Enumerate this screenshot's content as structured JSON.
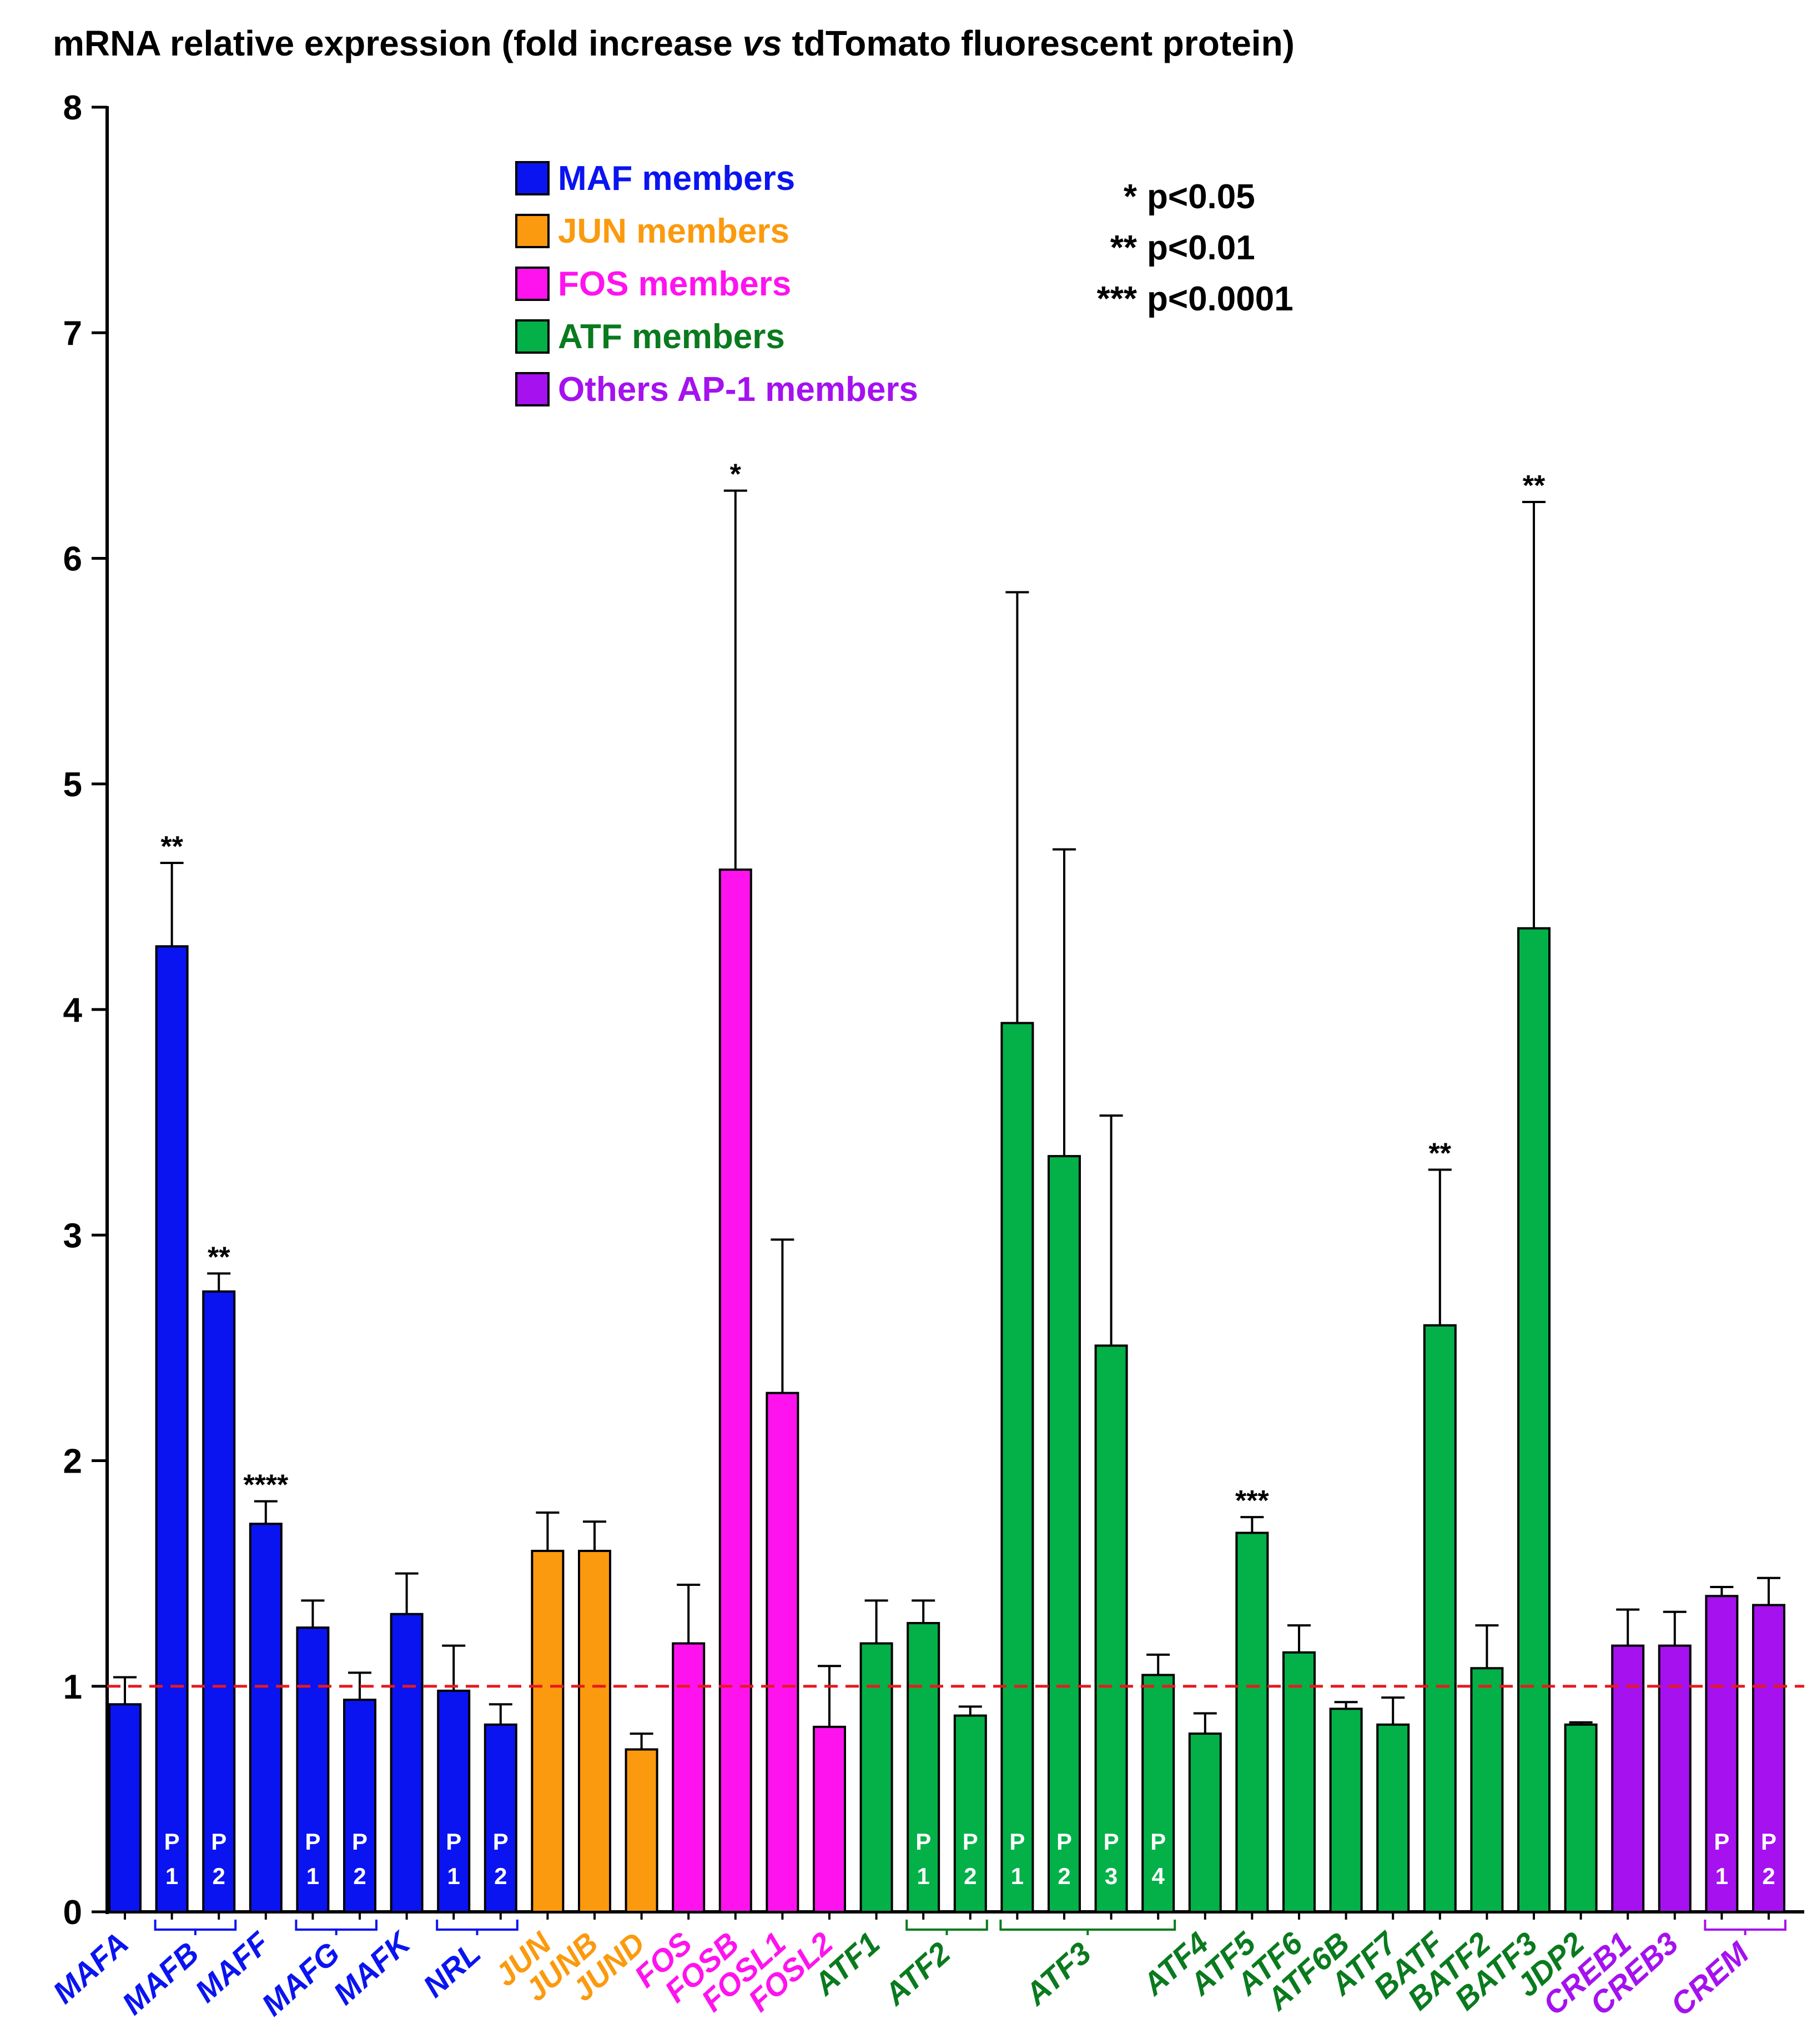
{
  "chart_data": {
    "type": "bar",
    "title": "mRNA relative expression (fold increase vs tdTomato fluorescent protein)",
    "title_parts": {
      "before": "mRNA relative expression (fold increase ",
      "italic": "vs",
      "after": " tdTomato fluorescent protein)"
    },
    "xlabel": "",
    "ylabel": "",
    "ylim": [
      0,
      8
    ],
    "yticks": [
      "0",
      "1",
      "2",
      "3",
      "4",
      "5",
      "6",
      "7",
      "8"
    ],
    "reference_line": {
      "value": 1,
      "color": "#e8191e",
      "style": "dashed"
    },
    "colors": {
      "MAF": "#0a14f0",
      "JUN": "#fb9a0e",
      "FOS": "#fe13ee",
      "ATF": "#04b048",
      "Others": "#a511ef",
      "ATF_text": "#0a7a1e"
    },
    "legend": [
      {
        "label": "MAF members",
        "group": "MAF"
      },
      {
        "label": "JUN members",
        "group": "JUN"
      },
      {
        "label": "FOS members",
        "group": "FOS"
      },
      {
        "label": "ATF members",
        "group": "ATF"
      },
      {
        "label": "Others AP-1 members",
        "group": "Others"
      }
    ],
    "significance_key": [
      "* p<0.05",
      "** p<0.01",
      "*** p<0.0001"
    ],
    "bars": [
      {
        "gene": "MAFA",
        "probe": "",
        "value": 0.92,
        "err": 0.12,
        "sig": "",
        "group": "MAF"
      },
      {
        "gene": "MAFB",
        "probe": "P\n1",
        "value": 4.28,
        "err": 0.37,
        "sig": "**",
        "group": "MAF"
      },
      {
        "gene": "MAFB",
        "probe": "P\n2",
        "value": 2.75,
        "err": 0.08,
        "sig": "**",
        "group": "MAF"
      },
      {
        "gene": "MAFF",
        "probe": "",
        "value": 1.72,
        "err": 0.1,
        "sig": "****",
        "group": "MAF"
      },
      {
        "gene": "MAFG",
        "probe": "P\n1",
        "value": 1.26,
        "err": 0.12,
        "sig": "",
        "group": "MAF"
      },
      {
        "gene": "MAFG",
        "probe": "P\n2",
        "value": 0.94,
        "err": 0.12,
        "sig": "",
        "group": "MAF"
      },
      {
        "gene": "MAFK",
        "probe": "",
        "value": 1.32,
        "err": 0.18,
        "sig": "",
        "group": "MAF"
      },
      {
        "gene": "NRL",
        "probe": "P\n1",
        "value": 0.98,
        "err": 0.2,
        "sig": "",
        "group": "MAF"
      },
      {
        "gene": "NRL",
        "probe": "P\n2",
        "value": 0.83,
        "err": 0.09,
        "sig": "",
        "group": "MAF"
      },
      {
        "gene": "JUN",
        "probe": "",
        "value": 1.6,
        "err": 0.17,
        "sig": "",
        "group": "JUN"
      },
      {
        "gene": "JUNB",
        "probe": "",
        "value": 1.6,
        "err": 0.13,
        "sig": "",
        "group": "JUN"
      },
      {
        "gene": "JUND",
        "probe": "",
        "value": 0.72,
        "err": 0.07,
        "sig": "",
        "group": "JUN"
      },
      {
        "gene": "FOS",
        "probe": "",
        "value": 1.19,
        "err": 0.26,
        "sig": "",
        "group": "FOS"
      },
      {
        "gene": "FOSB",
        "probe": "",
        "value": 4.62,
        "err": 1.68,
        "sig": "*",
        "group": "FOS"
      },
      {
        "gene": "FOSL1",
        "probe": "",
        "value": 2.3,
        "err": 0.68,
        "sig": "",
        "group": "FOS"
      },
      {
        "gene": "FOSL2",
        "probe": "",
        "value": 0.82,
        "err": 0.27,
        "sig": "",
        "group": "FOS"
      },
      {
        "gene": "ATF1",
        "probe": "",
        "value": 1.19,
        "err": 0.19,
        "sig": "",
        "group": "ATF"
      },
      {
        "gene": "ATF2",
        "probe": "P\n1",
        "value": 1.28,
        "err": 0.1,
        "sig": "",
        "group": "ATF"
      },
      {
        "gene": "ATF2",
        "probe": "P\n2",
        "value": 0.87,
        "err": 0.04,
        "sig": "",
        "group": "ATF"
      },
      {
        "gene": "ATF3",
        "probe": "P\n1",
        "value": 3.94,
        "err": 1.91,
        "sig": "",
        "group": "ATF"
      },
      {
        "gene": "ATF3",
        "probe": "P\n2",
        "value": 3.35,
        "err": 1.36,
        "sig": "",
        "group": "ATF"
      },
      {
        "gene": "ATF3",
        "probe": "P\n3",
        "value": 2.51,
        "err": 1.02,
        "sig": "",
        "group": "ATF"
      },
      {
        "gene": "ATF3",
        "probe": "P\n4",
        "value": 1.05,
        "err": 0.09,
        "sig": "",
        "group": "ATF"
      },
      {
        "gene": "ATF4",
        "probe": "",
        "value": 0.79,
        "err": 0.09,
        "sig": "",
        "group": "ATF"
      },
      {
        "gene": "ATF5",
        "probe": "",
        "value": 1.68,
        "err": 0.07,
        "sig": "***",
        "group": "ATF"
      },
      {
        "gene": "ATF6",
        "probe": "",
        "value": 1.15,
        "err": 0.12,
        "sig": "",
        "group": "ATF"
      },
      {
        "gene": "ATF6B",
        "probe": "",
        "value": 0.9,
        "err": 0.03,
        "sig": "",
        "group": "ATF"
      },
      {
        "gene": "ATF7",
        "probe": "",
        "value": 0.83,
        "err": 0.12,
        "sig": "",
        "group": "ATF"
      },
      {
        "gene": "BATF",
        "probe": "",
        "value": 2.6,
        "err": 0.69,
        "sig": "**",
        "group": "ATF"
      },
      {
        "gene": "BATF2",
        "probe": "",
        "value": 1.08,
        "err": 0.19,
        "sig": "",
        "group": "ATF"
      },
      {
        "gene": "BATF3",
        "probe": "",
        "value": 4.36,
        "err": 1.89,
        "sig": "**",
        "group": "ATF"
      },
      {
        "gene": "JDP2",
        "probe": "",
        "value": 0.83,
        "err": 0.01,
        "sig": "",
        "group": "ATF"
      },
      {
        "gene": "CREB1",
        "probe": "",
        "value": 1.18,
        "err": 0.16,
        "sig": "",
        "group": "Others"
      },
      {
        "gene": "CREB3",
        "probe": "",
        "value": 1.18,
        "err": 0.15,
        "sig": "",
        "group": "Others"
      },
      {
        "gene": "CREM",
        "probe": "P\n1",
        "value": 1.4,
        "err": 0.04,
        "sig": "",
        "group": "Others"
      },
      {
        "gene": "CREM",
        "probe": "P\n2",
        "value": 1.36,
        "err": 0.12,
        "sig": "",
        "group": "Others"
      }
    ],
    "xlabels": [
      {
        "label": "MAFA",
        "from": 0,
        "to": 0,
        "group": "MAF"
      },
      {
        "label": "MAFB",
        "from": 1,
        "to": 2,
        "group": "MAF"
      },
      {
        "label": "MAFF",
        "from": 3,
        "to": 3,
        "group": "MAF"
      },
      {
        "label": "MAFG",
        "from": 4,
        "to": 5,
        "group": "MAF"
      },
      {
        "label": "MAFK",
        "from": 6,
        "to": 6,
        "group": "MAF"
      },
      {
        "label": "NRL",
        "from": 7,
        "to": 8,
        "group": "MAF"
      },
      {
        "label": "JUN",
        "from": 9,
        "to": 9,
        "group": "JUN"
      },
      {
        "label": "JUNB",
        "from": 10,
        "to": 10,
        "group": "JUN"
      },
      {
        "label": "JUND",
        "from": 11,
        "to": 11,
        "group": "JUN"
      },
      {
        "label": "FOS",
        "from": 12,
        "to": 12,
        "group": "FOS"
      },
      {
        "label": "FOSB",
        "from": 13,
        "to": 13,
        "group": "FOS"
      },
      {
        "label": "FOSL1",
        "from": 14,
        "to": 14,
        "group": "FOS"
      },
      {
        "label": "FOSL2",
        "from": 15,
        "to": 15,
        "group": "FOS"
      },
      {
        "label": "ATF1",
        "from": 16,
        "to": 16,
        "group": "ATF"
      },
      {
        "label": "ATF2",
        "from": 17,
        "to": 18,
        "group": "ATF"
      },
      {
        "label": "ATF3",
        "from": 19,
        "to": 22,
        "group": "ATF"
      },
      {
        "label": "ATF4",
        "from": 23,
        "to": 23,
        "group": "ATF"
      },
      {
        "label": "ATF5",
        "from": 24,
        "to": 24,
        "group": "ATF"
      },
      {
        "label": "ATF6",
        "from": 25,
        "to": 25,
        "group": "ATF"
      },
      {
        "label": "ATF6B",
        "from": 26,
        "to": 26,
        "group": "ATF"
      },
      {
        "label": "ATF7",
        "from": 27,
        "to": 27,
        "group": "ATF"
      },
      {
        "label": "BATF",
        "from": 28,
        "to": 28,
        "group": "ATF"
      },
      {
        "label": "BATF2",
        "from": 29,
        "to": 29,
        "group": "ATF"
      },
      {
        "label": "BATF3",
        "from": 30,
        "to": 30,
        "group": "ATF"
      },
      {
        "label": "JDP2",
        "from": 31,
        "to": 31,
        "group": "ATF"
      },
      {
        "label": "CREB1",
        "from": 32,
        "to": 32,
        "group": "Others"
      },
      {
        "label": "CREB3",
        "from": 33,
        "to": 33,
        "group": "Others"
      },
      {
        "label": "CREM",
        "from": 34,
        "to": 35,
        "group": "Others"
      }
    ]
  }
}
